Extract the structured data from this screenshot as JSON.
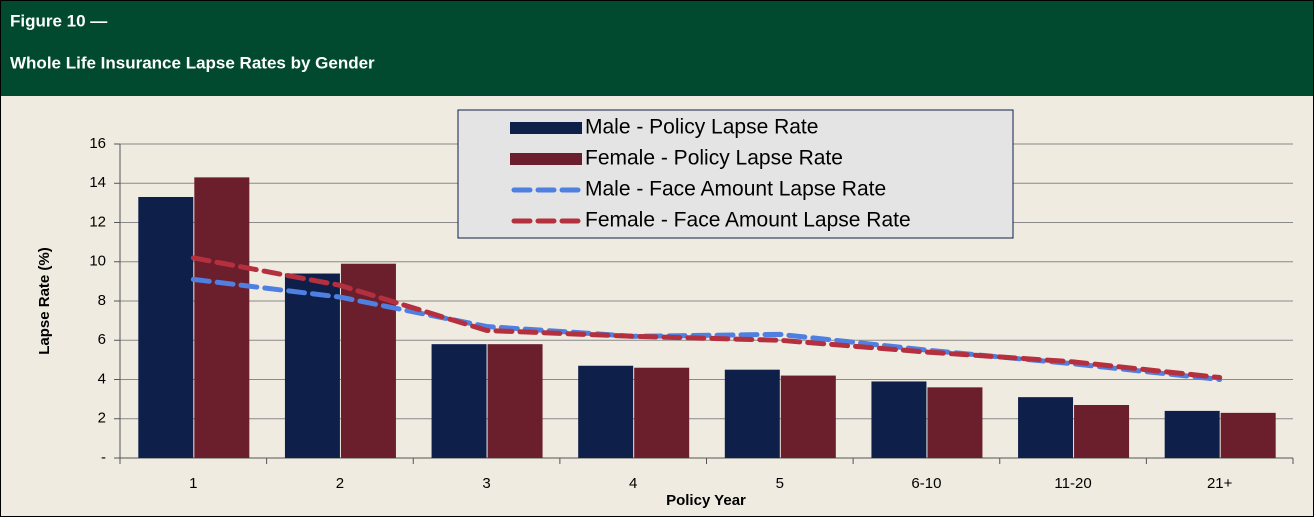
{
  "chart_data": {
    "type": "bar",
    "title": "Figure 10 —",
    "subtitle": "Whole Life Insurance Lapse Rates by Gender",
    "x_label": "Policy Year",
    "y_label": "Lapse Rate (%)",
    "categories": [
      "1",
      "2",
      "3",
      "4",
      "5",
      "6-10",
      "11-20",
      "21+"
    ],
    "series": [
      {
        "name": "Male - Policy Lapse Rate",
        "kind": "bar",
        "color": "#0e1f4a",
        "values": [
          13.3,
          9.4,
          5.8,
          4.7,
          4.5,
          3.9,
          3.1,
          2.4
        ]
      },
      {
        "name": "Female - Policy Lapse Rate",
        "kind": "bar",
        "color": "#6b1e2c",
        "values": [
          14.3,
          9.9,
          5.8,
          4.6,
          4.2,
          3.6,
          2.7,
          2.3
        ]
      },
      {
        "name": "Male - Face Amount Lapse Rate",
        "kind": "line",
        "color": "#4f7fe0",
        "values": [
          9.1,
          8.2,
          6.7,
          6.2,
          6.3,
          5.5,
          4.8,
          4.0
        ]
      },
      {
        "name": "Female - Face Amount Lapse Rate",
        "kind": "line",
        "color": "#b5303f",
        "values": [
          10.2,
          8.8,
          6.5,
          6.2,
          6.0,
          5.4,
          4.9,
          4.1
        ]
      }
    ],
    "ylim": [
      0,
      16
    ],
    "yticks": [
      {
        "value": 0,
        "label": "-"
      },
      2,
      4,
      6,
      8,
      10,
      12,
      14,
      16
    ],
    "grid": true,
    "legend": "top"
  }
}
